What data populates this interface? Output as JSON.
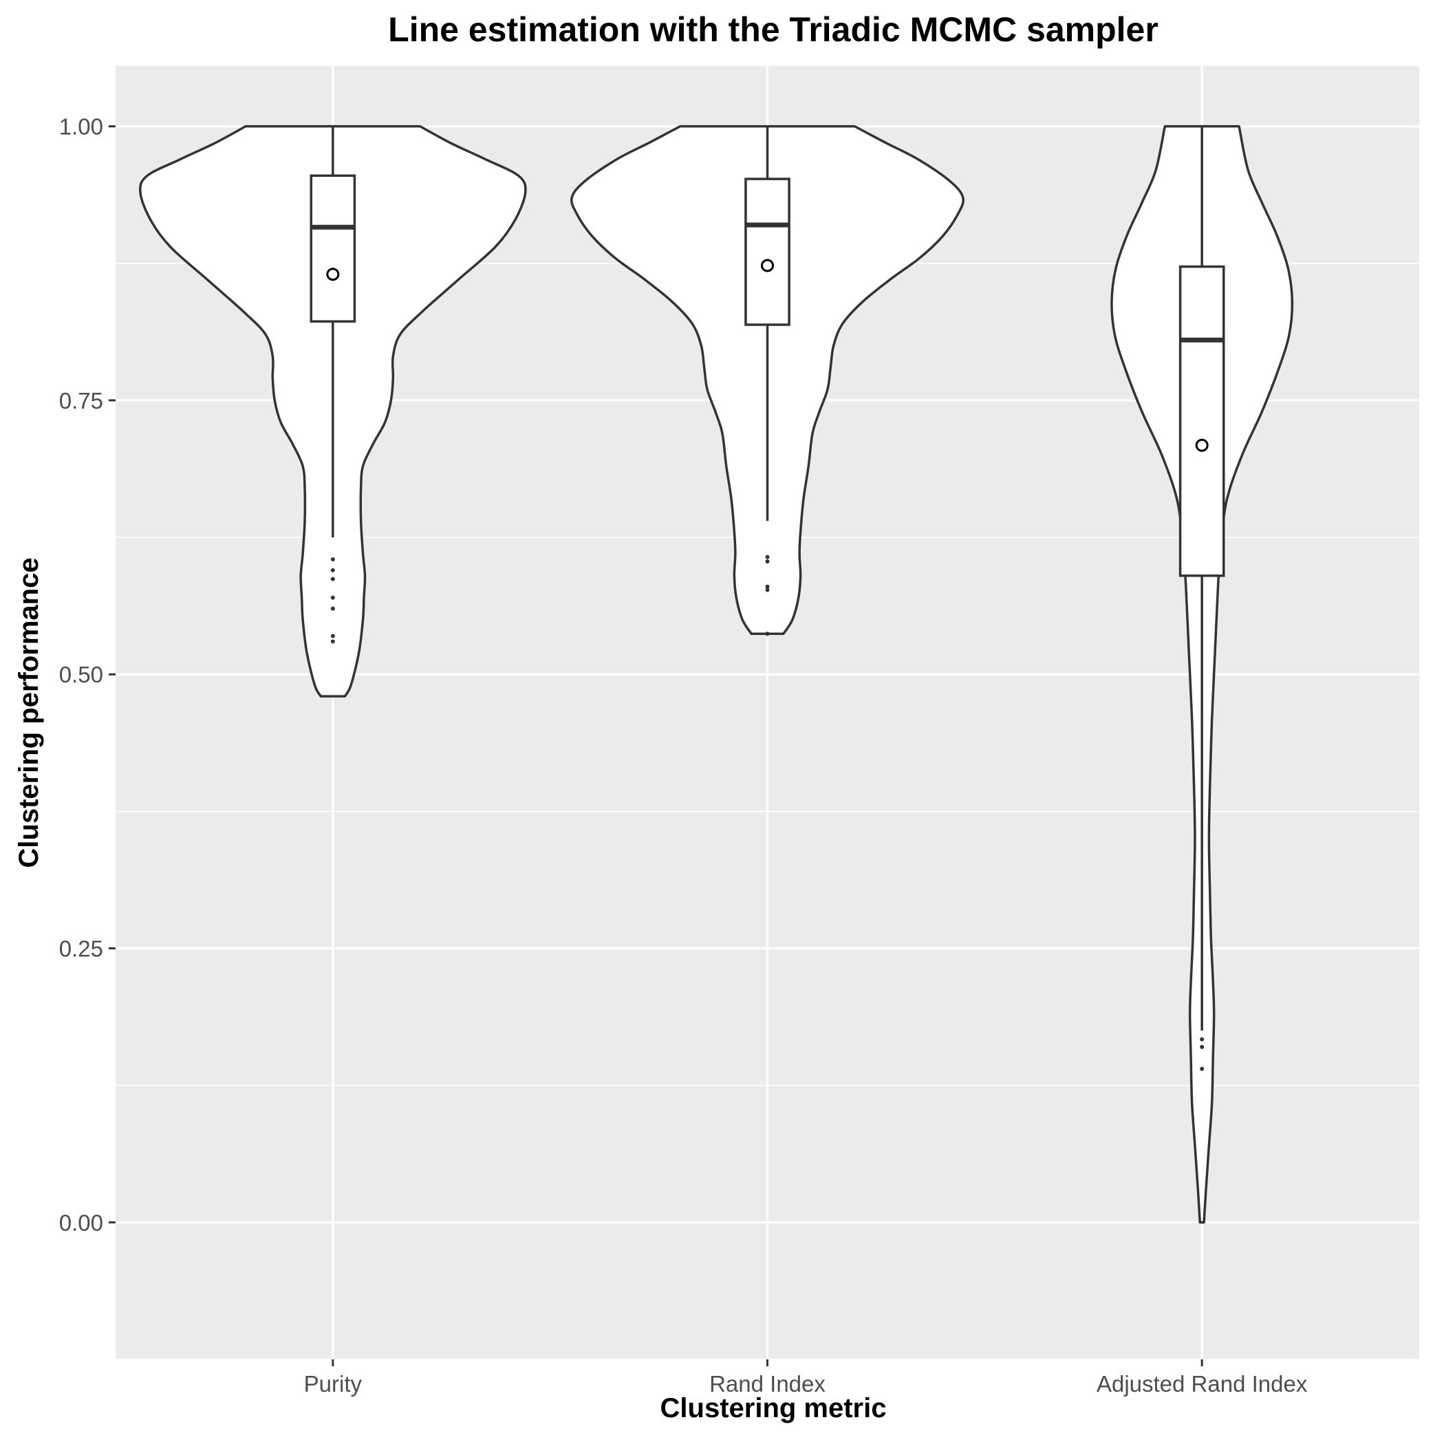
{
  "chart_data": {
    "type": "violin",
    "title": "Line estimation with the Triadic MCMC sampler",
    "xlabel": "Clustering metric",
    "ylabel": "Clustering performance",
    "categories": [
      "Purity",
      "Rand Index",
      "Adjusted Rand Index"
    ],
    "ylim": [
      -0.125,
      1.055
    ],
    "yticks": [
      0.0,
      0.25,
      0.5,
      0.75,
      1.0
    ],
    "ytick_labels": [
      "0.00",
      "0.25",
      "0.50",
      "0.75",
      "1.00"
    ],
    "grid": true,
    "panel_background": "#ebebeb",
    "violin_fill": "#ffffff",
    "line_color": "#333333",
    "series": [
      {
        "category": "Purity",
        "min": 0.48,
        "q1": 0.822,
        "median": 0.908,
        "q3": 0.955,
        "max": 1.0,
        "whisker_low": 0.625,
        "mean": 0.865,
        "outliers": [
          0.605,
          0.595,
          0.587,
          0.57,
          0.56,
          0.535,
          0.53
        ],
        "density": [
          [
            0.48,
            0.012
          ],
          [
            0.49,
            0.018
          ],
          [
            0.52,
            0.026
          ],
          [
            0.55,
            0.03
          ],
          [
            0.57,
            0.031
          ],
          [
            0.59,
            0.032
          ],
          [
            0.61,
            0.03
          ],
          [
            0.64,
            0.028
          ],
          [
            0.67,
            0.028
          ],
          [
            0.69,
            0.03
          ],
          [
            0.71,
            0.04
          ],
          [
            0.73,
            0.052
          ],
          [
            0.75,
            0.058
          ],
          [
            0.77,
            0.06
          ],
          [
            0.79,
            0.06
          ],
          [
            0.81,
            0.067
          ],
          [
            0.83,
            0.088
          ],
          [
            0.86,
            0.125
          ],
          [
            0.89,
            0.162
          ],
          [
            0.915,
            0.182
          ],
          [
            0.94,
            0.192
          ],
          [
            0.955,
            0.185
          ],
          [
            0.97,
            0.152
          ],
          [
            0.985,
            0.117
          ],
          [
            1.0,
            0.087
          ]
        ]
      },
      {
        "category": "Rand Index",
        "min": 0.537,
        "q1": 0.819,
        "median": 0.91,
        "q3": 0.952,
        "max": 1.0,
        "whisker_low": 0.64,
        "mean": 0.873,
        "outliers": [
          0.607,
          0.603,
          0.58,
          0.577,
          0.537
        ],
        "density": [
          [
            0.537,
            0.016
          ],
          [
            0.55,
            0.025
          ],
          [
            0.57,
            0.031
          ],
          [
            0.59,
            0.033
          ],
          [
            0.61,
            0.032
          ],
          [
            0.63,
            0.033
          ],
          [
            0.66,
            0.036
          ],
          [
            0.69,
            0.041
          ],
          [
            0.72,
            0.045
          ],
          [
            0.74,
            0.052
          ],
          [
            0.76,
            0.06
          ],
          [
            0.78,
            0.063
          ],
          [
            0.8,
            0.066
          ],
          [
            0.82,
            0.075
          ],
          [
            0.84,
            0.095
          ],
          [
            0.86,
            0.122
          ],
          [
            0.88,
            0.152
          ],
          [
            0.9,
            0.175
          ],
          [
            0.92,
            0.19
          ],
          [
            0.935,
            0.195
          ],
          [
            0.95,
            0.182
          ],
          [
            0.97,
            0.15
          ],
          [
            0.985,
            0.118
          ],
          [
            1.0,
            0.087
          ]
        ]
      },
      {
        "category": "Adjusted Rand Index",
        "min": 0.0,
        "q1": 0.59,
        "median": 0.805,
        "q3": 0.872,
        "max": 1.0,
        "whisker_low": 0.175,
        "mean": 0.709,
        "outliers": [
          0.167,
          0.16,
          0.14
        ],
        "density": [
          [
            0.0,
            0.002
          ],
          [
            0.03,
            0.004
          ],
          [
            0.07,
            0.007
          ],
          [
            0.11,
            0.01
          ],
          [
            0.15,
            0.011
          ],
          [
            0.19,
            0.012
          ],
          [
            0.22,
            0.011
          ],
          [
            0.26,
            0.009
          ],
          [
            0.3,
            0.008
          ],
          [
            0.35,
            0.007
          ],
          [
            0.4,
            0.008
          ],
          [
            0.46,
            0.01
          ],
          [
            0.52,
            0.013
          ],
          [
            0.58,
            0.016
          ],
          [
            0.62,
            0.019
          ],
          [
            0.66,
            0.025
          ],
          [
            0.7,
            0.04
          ],
          [
            0.74,
            0.06
          ],
          [
            0.78,
            0.077
          ],
          [
            0.81,
            0.087
          ],
          [
            0.84,
            0.09
          ],
          [
            0.87,
            0.086
          ],
          [
            0.9,
            0.075
          ],
          [
            0.93,
            0.06
          ],
          [
            0.96,
            0.046
          ],
          [
            1.0,
            0.037
          ]
        ]
      }
    ]
  }
}
